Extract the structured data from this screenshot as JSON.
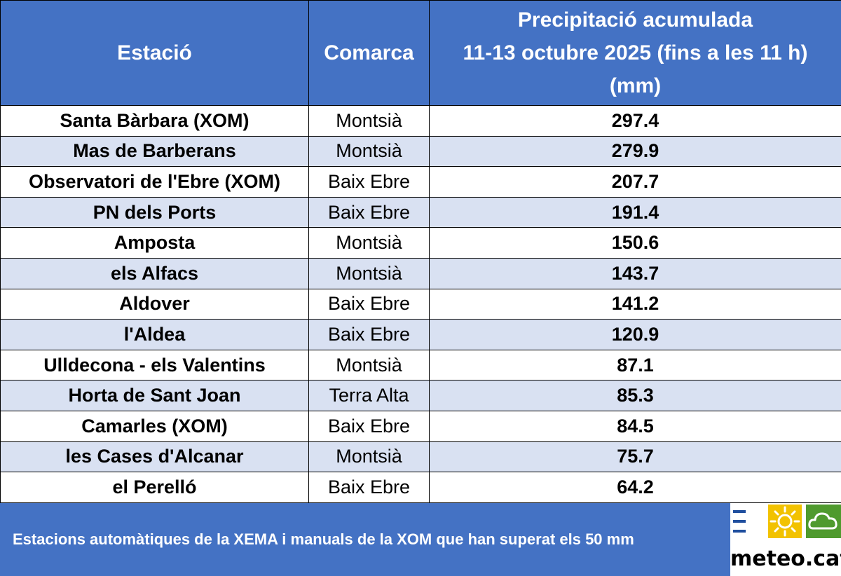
{
  "table": {
    "headers": {
      "station": "Estació",
      "comarca": "Comarca",
      "precip_line1": "Precipitació acumulada",
      "precip_line2": "11-13 octubre 2025 (fins a les 11 h)",
      "precip_line3": "(mm)"
    },
    "rows": [
      {
        "station": "Santa Bàrbara (XOM)",
        "comarca": "Montsià",
        "value": "297.4"
      },
      {
        "station": "Mas de Barberans",
        "comarca": "Montsià",
        "value": "279.9"
      },
      {
        "station": "Observatori de l'Ebre (XOM)",
        "comarca": "Baix Ebre",
        "value": "207.7"
      },
      {
        "station": "PN dels Ports",
        "comarca": "Baix Ebre",
        "value": "191.4"
      },
      {
        "station": "Amposta",
        "comarca": "Montsià",
        "value": "150.6"
      },
      {
        "station": "els Alfacs",
        "comarca": "Montsià",
        "value": "143.7"
      },
      {
        "station": "Aldover",
        "comarca": "Baix Ebre",
        "value": "141.2"
      },
      {
        "station": "l'Aldea",
        "comarca": "Baix Ebre",
        "value": "120.9"
      },
      {
        "station": "Ulldecona - els Valentins",
        "comarca": "Montsià",
        "value": "87.1"
      },
      {
        "station": "Horta de Sant Joan",
        "comarca": "Terra Alta",
        "value": "85.3"
      },
      {
        "station": "Camarles (XOM)",
        "comarca": "Baix Ebre",
        "value": "84.5"
      },
      {
        "station": "les Cases d'Alcanar",
        "comarca": "Montsià",
        "value": "75.7"
      },
      {
        "station": "el Perelló",
        "comarca": "Baix Ebre",
        "value": "64.2"
      }
    ]
  },
  "footer": {
    "note": "Estacions automàtiques de la XEMA i manuals de la XOM que han superat els 50 mm",
    "logo_text": "meteo.cat",
    "logo_icons": [
      "menu-icon",
      "sun-icon",
      "cloud-icon"
    ]
  },
  "colors": {
    "header_bg": "#4472c4",
    "band_row": "#d9e1f2",
    "logo_sun": "#f2c200",
    "logo_cloud": "#4f9a2e",
    "logo_menu": "#1f4e9e"
  }
}
